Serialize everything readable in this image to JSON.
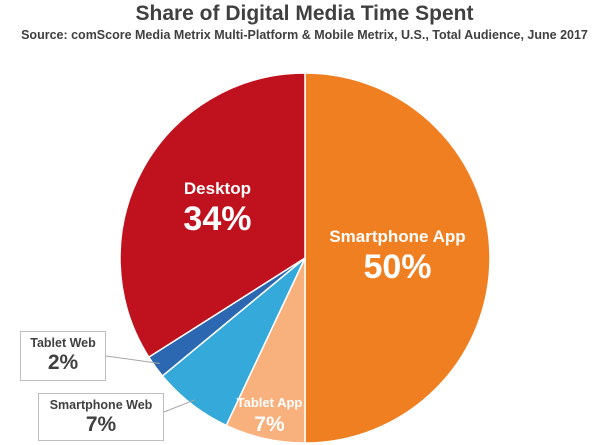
{
  "chart_data": {
    "type": "pie",
    "title": "Share of Digital Media Time Spent",
    "subtitle": "Source: comScore Media Metrix Multi-Platform & Mobile Metrix, U.S., Total Audience, June 2017",
    "start_angle_deg": 0,
    "direction": "clockwise",
    "slices": [
      {
        "name": "Smartphone App",
        "value": 50,
        "label": "50%",
        "color": "#F07F21",
        "label_position": "inside"
      },
      {
        "name": "Tablet App",
        "value": 7,
        "label": "7%",
        "color": "#F8B07D",
        "label_position": "inside"
      },
      {
        "name": "Smartphone Web",
        "value": 7,
        "label": "7%",
        "color": "#35AADA",
        "label_position": "callout"
      },
      {
        "name": "Tablet Web",
        "value": 2,
        "label": "2%",
        "color": "#2C68B1",
        "label_position": "callout"
      },
      {
        "name": "Desktop",
        "value": 34,
        "label": "34%",
        "color": "#C0121E",
        "label_position": "inside"
      }
    ]
  }
}
